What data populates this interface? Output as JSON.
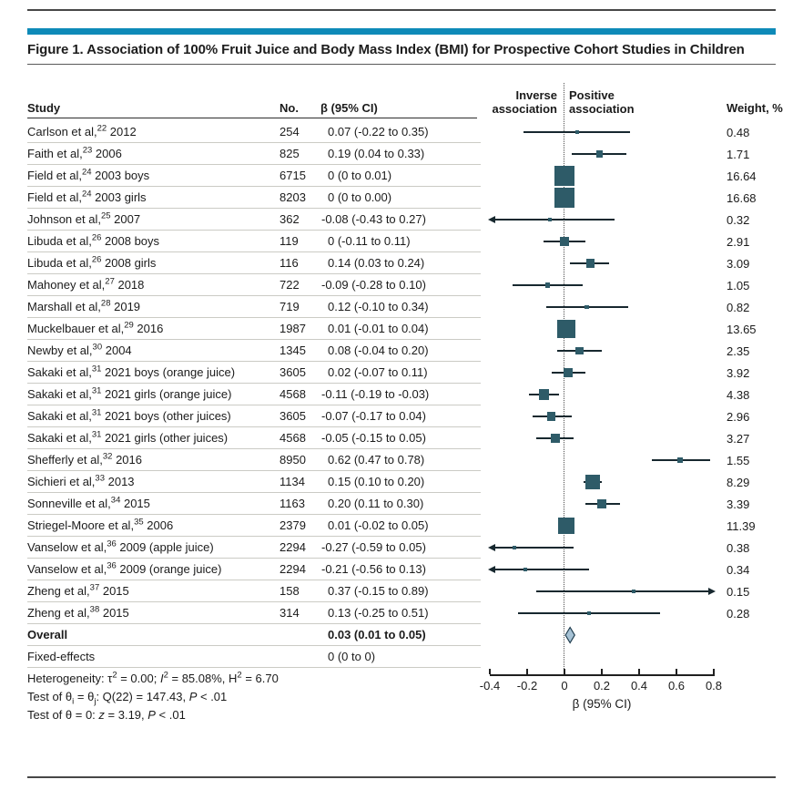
{
  "figure": {
    "title": "Figure 1. Association of 100% Fruit Juice and Body Mass Index (BMI) for Prospective Cohort Studies in Children",
    "accent_color": "#0e8ab8"
  },
  "columns": {
    "study": "Study",
    "no": "No.",
    "beta": "β (95% CI)",
    "inverse1": "Inverse",
    "inverse2": "association",
    "positive1": "Positive",
    "positive2": "association",
    "weight": "Weight, %"
  },
  "chart_data": {
    "type": "forest",
    "xlabel": "β (95% CI)",
    "xlim": [
      -0.4,
      0.8
    ],
    "zero_reference": 0,
    "x_ticks": [
      {
        "v": -0.4,
        "label": "-0.4"
      },
      {
        "v": -0.2,
        "label": "-0.2"
      },
      {
        "v": 0,
        "label": "0"
      },
      {
        "v": 0.2,
        "label": "0.2"
      },
      {
        "v": 0.4,
        "label": "0.4"
      },
      {
        "v": 0.6,
        "label": "0.6"
      },
      {
        "v": 0.8,
        "label": "0.8"
      }
    ],
    "colors": {
      "marker": "#2e5b68",
      "line": "#17282f",
      "diamond_fill": "#a6c2d5",
      "diamond_stroke": "#1f3c4d"
    },
    "studies": [
      {
        "pre": "Carlson et al,",
        "ref": "22",
        "post": " 2012",
        "n": "254",
        "ci": "0.07 (-0.22 to 0.35)",
        "beta": 0.07,
        "lo": -0.22,
        "hi": 0.35,
        "weight": "0.48"
      },
      {
        "pre": "Faith et al,",
        "ref": "23",
        "post": " 2006",
        "n": "825",
        "ci": "0.19 (0.04 to 0.33)",
        "beta": 0.19,
        "lo": 0.04,
        "hi": 0.33,
        "weight": "1.71"
      },
      {
        "pre": "Field et al,",
        "ref": "24",
        "post": " 2003 boys",
        "n": "6715",
        "ci": "0 (0 to 0.01)",
        "beta": 0,
        "lo": 0,
        "hi": 0.01,
        "weight": "16.64"
      },
      {
        "pre": "Field et al,",
        "ref": "24",
        "post": " 2003 girls",
        "n": "8203",
        "ci": "0 (0 to 0.00)",
        "beta": 0,
        "lo": 0,
        "hi": 0,
        "weight": "16.68"
      },
      {
        "pre": "Johnson et al,",
        "ref": "25",
        "post": " 2007",
        "n": "362",
        "ci": "-0.08 (-0.43 to 0.27)",
        "beta": -0.08,
        "lo": -0.43,
        "hi": 0.27,
        "weight": "0.32"
      },
      {
        "pre": "Libuda et al,",
        "ref": "26",
        "post": " 2008 boys",
        "n": "119",
        "ci": "0 (-0.11 to 0.11)",
        "beta": 0,
        "lo": -0.11,
        "hi": 0.11,
        "weight": "2.91"
      },
      {
        "pre": "Libuda et al,",
        "ref": "26",
        "post": " 2008 girls",
        "n": "116",
        "ci": "0.14 (0.03 to 0.24)",
        "beta": 0.14,
        "lo": 0.03,
        "hi": 0.24,
        "weight": "3.09"
      },
      {
        "pre": "Mahoney et al,",
        "ref": "27",
        "post": " 2018",
        "n": "722",
        "ci": "-0.09 (-0.28 to 0.10)",
        "beta": -0.09,
        "lo": -0.28,
        "hi": 0.1,
        "weight": "1.05"
      },
      {
        "pre": "Marshall et al,",
        "ref": "28",
        "post": " 2019",
        "n": "719",
        "ci": "0.12 (-0.10 to 0.34)",
        "beta": 0.12,
        "lo": -0.1,
        "hi": 0.34,
        "weight": "0.82"
      },
      {
        "pre": "Muckelbauer et al,",
        "ref": "29",
        "post": " 2016",
        "n": "1987",
        "ci": "0.01 (-0.01 to 0.04)",
        "beta": 0.01,
        "lo": -0.01,
        "hi": 0.04,
        "weight": "13.65"
      },
      {
        "pre": "Newby et al,",
        "ref": "30",
        "post": " 2004",
        "n": "1345",
        "ci": "0.08 (-0.04 to 0.20)",
        "beta": 0.08,
        "lo": -0.04,
        "hi": 0.2,
        "weight": "2.35"
      },
      {
        "pre": "Sakaki et al,",
        "ref": "31",
        "post": " 2021 boys (orange juice)",
        "n": "3605",
        "ci": "0.02 (-0.07 to 0.11)",
        "beta": 0.02,
        "lo": -0.07,
        "hi": 0.11,
        "weight": "3.92"
      },
      {
        "pre": "Sakaki et al,",
        "ref": "31",
        "post": " 2021 girls (orange juice)",
        "n": "4568",
        "ci": "-0.11 (-0.19 to -0.03)",
        "beta": -0.11,
        "lo": -0.19,
        "hi": -0.03,
        "weight": "4.38"
      },
      {
        "pre": "Sakaki et al,",
        "ref": "31",
        "post": " 2021 boys (other juices)",
        "n": "3605",
        "ci": "-0.07 (-0.17 to 0.04)",
        "beta": -0.07,
        "lo": -0.17,
        "hi": 0.04,
        "weight": "2.96"
      },
      {
        "pre": "Sakaki et al,",
        "ref": "31",
        "post": " 2021 girls (other juices)",
        "n": "4568",
        "ci": "-0.05 (-0.15 to 0.05)",
        "beta": -0.05,
        "lo": -0.15,
        "hi": 0.05,
        "weight": "3.27"
      },
      {
        "pre": "Shefferly et al,",
        "ref": "32",
        "post": " 2016",
        "n": "8950",
        "ci": "0.62 (0.47 to 0.78)",
        "beta": 0.62,
        "lo": 0.47,
        "hi": 0.78,
        "weight": "1.55"
      },
      {
        "pre": "Sichieri et al,",
        "ref": "33",
        "post": " 2013",
        "n": "1134",
        "ci": "0.15 (0.10 to 0.20)",
        "beta": 0.15,
        "lo": 0.1,
        "hi": 0.2,
        "weight": "8.29"
      },
      {
        "pre": "Sonneville et al,",
        "ref": "34",
        "post": " 2015",
        "n": "1163",
        "ci": "0.20 (0.11 to 0.30)",
        "beta": 0.2,
        "lo": 0.11,
        "hi": 0.3,
        "weight": "3.39"
      },
      {
        "pre": "Striegel-Moore et al,",
        "ref": "35",
        "post": " 2006",
        "n": "2379",
        "ci": "0.01 (-0.02 to 0.05)",
        "beta": 0.01,
        "lo": -0.02,
        "hi": 0.05,
        "weight": "11.39"
      },
      {
        "pre": "Vanselow et al,",
        "ref": "36",
        "post": " 2009 (apple juice)",
        "n": "2294",
        "ci": "-0.27 (-0.59 to 0.05)",
        "beta": -0.27,
        "lo": -0.59,
        "hi": 0.05,
        "weight": "0.38"
      },
      {
        "pre": "Vanselow et al,",
        "ref": "36",
        "post": " 2009 (orange juice)",
        "n": "2294",
        "ci": "-0.21 (-0.56 to 0.13)",
        "beta": -0.21,
        "lo": -0.56,
        "hi": 0.13,
        "weight": "0.34"
      },
      {
        "pre": "Zheng et al,",
        "ref": "37",
        "post": " 2015",
        "n": "158",
        "ci": "0.37 (-0.15 to 0.89)",
        "beta": 0.37,
        "lo": -0.15,
        "hi": 0.89,
        "weight": "0.15"
      },
      {
        "pre": "Zheng et al,",
        "ref": "38",
        "post": " 2015",
        "n": "314",
        "ci": "0.13 (-0.25 to 0.51)",
        "beta": 0.13,
        "lo": -0.25,
        "hi": 0.51,
        "weight": "0.28"
      }
    ],
    "summary": [
      {
        "label": "Overall",
        "ci": "0.03 (0.01 to 0.05)",
        "beta": 0.03,
        "lo": 0.01,
        "hi": 0.05,
        "style": "overall"
      },
      {
        "label": "Fixed-effects",
        "ci": "0 (0 to 0)",
        "beta": 0,
        "lo": 0,
        "hi": 0,
        "style": "fixed"
      }
    ]
  },
  "footnotes": [
    [
      {
        "t": "Heterogeneity: τ"
      },
      {
        "t": "2",
        "style": "sup"
      },
      {
        "t": " = 0.00; "
      },
      {
        "t": "I",
        "style": "i"
      },
      {
        "t": "2",
        "style": "sup"
      },
      {
        "t": " = 85.08%, H"
      },
      {
        "t": "2",
        "style": "sup"
      },
      {
        "t": " = 6.70"
      }
    ],
    [
      {
        "t": "Test of θ"
      },
      {
        "t": "i",
        "style": "sub"
      },
      {
        "t": " = θ"
      },
      {
        "t": "j",
        "style": "sub"
      },
      {
        "t": ": Q(22) = 147.43, "
      },
      {
        "t": "P",
        "style": "i"
      },
      {
        "t": " < .01"
      }
    ],
    [
      {
        "t": "Test of θ = 0: "
      },
      {
        "t": "z",
        "style": "i"
      },
      {
        "t": " = 3.19, "
      },
      {
        "t": "P",
        "style": "i"
      },
      {
        "t": " < .01"
      }
    ]
  ]
}
